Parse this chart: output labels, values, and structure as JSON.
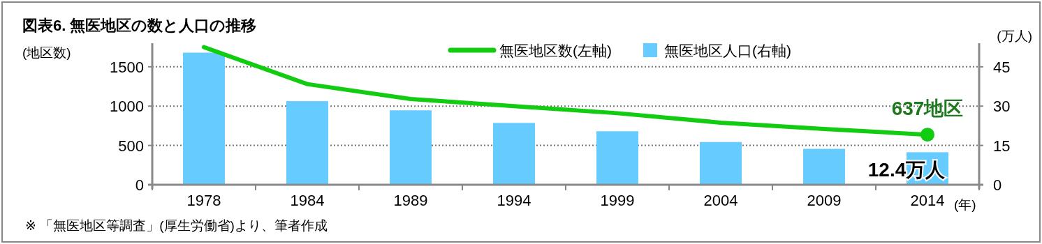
{
  "chart_data": {
    "type": "bar",
    "title": "図表6.  無医地区の数と人口の推移",
    "categories": [
      "1978",
      "1984",
      "1989",
      "1994",
      "1999",
      "2004",
      "2009",
      "2014"
    ],
    "series": [
      {
        "name": "無医地区数(左軸)",
        "type": "line",
        "color": "#11cc11",
        "values": [
          1750,
          1280,
          1090,
          1000,
          910,
          790,
          710,
          637
        ],
        "value_labels": [
          null,
          null,
          null,
          null,
          null,
          null,
          null,
          "637地区"
        ]
      },
      {
        "name": "無医地区人口(右軸)",
        "axis": "y2",
        "color": "#66ccff",
        "values": [
          50.4,
          31.9,
          28.4,
          23.6,
          20.4,
          16.3,
          13.7,
          12.4
        ],
        "value_labels": [
          null,
          null,
          null,
          null,
          null,
          null,
          null,
          "12.4万人"
        ]
      }
    ],
    "ylabel": "(地区数)",
    "y2label": "(万人)",
    "xlabel": "(年)",
    "ylim": [
      0,
      1800
    ],
    "yticks": [
      0,
      500,
      1000,
      1500
    ],
    "y2lim": [
      0,
      54
    ],
    "y2ticks": [
      0,
      15,
      30,
      45
    ],
    "grid": "y",
    "legend": "top",
    "annotations": [
      "※ 「無医地区等調査」(厚生労働省)より、筆者作成"
    ]
  }
}
